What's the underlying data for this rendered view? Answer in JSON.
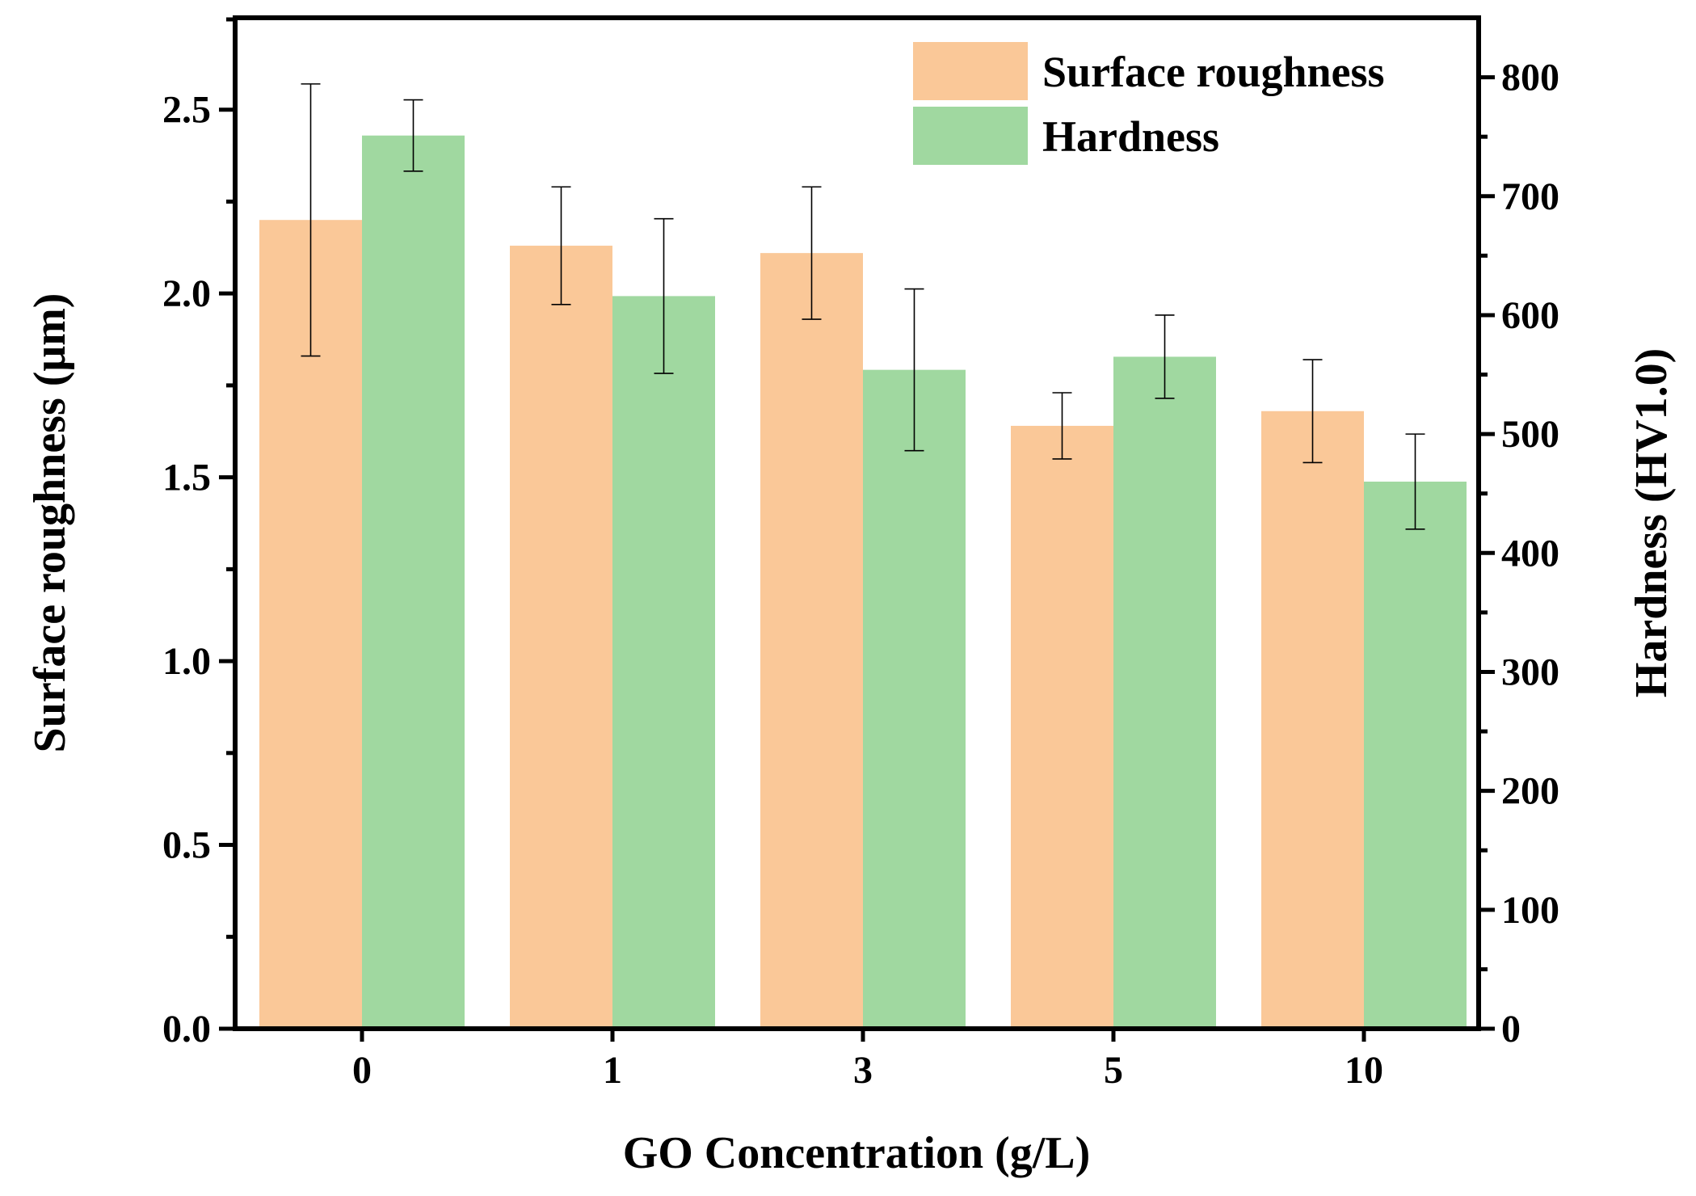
{
  "chart_data": {
    "type": "bar",
    "title": "",
    "xlabel": "GO Concentration (g/L)",
    "ylabel": "Surface roughness (μm)",
    "y2label": "Hardness (HV1.0)",
    "categories": [
      "0",
      "1",
      "3",
      "5",
      "10"
    ],
    "ylim": [
      0,
      2.75
    ],
    "y2lim": [
      0,
      850
    ],
    "yticks": [
      "0.0",
      "0.5",
      "1.0",
      "1.5",
      "2.0",
      "2.5"
    ],
    "y2ticks": [
      "0",
      "100",
      "200",
      "300",
      "400",
      "500",
      "600",
      "700",
      "800"
    ],
    "legend_position": "top-right",
    "grid": false,
    "series": [
      {
        "name": "Surface roughness",
        "axis": "left",
        "color": "#FAC898",
        "values": [
          2.2,
          2.13,
          2.11,
          1.64,
          1.68
        ],
        "errors": [
          0.37,
          0.16,
          0.18,
          0.09,
          0.14
        ]
      },
      {
        "name": "Hardness",
        "axis": "right",
        "color": "#A0D8A0",
        "values": [
          751,
          616,
          554,
          565,
          460
        ],
        "errors": [
          30,
          65,
          68,
          35,
          40
        ]
      }
    ]
  }
}
